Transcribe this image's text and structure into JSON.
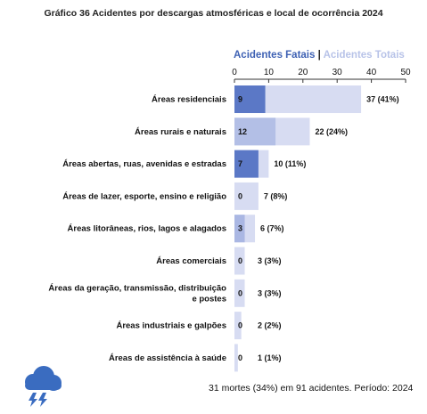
{
  "chart_data": {
    "type": "bar",
    "orientation": "horizontal",
    "title": "Gráfico 36 Acidentes por descargas atmosféricas e local de ocorrência 2024",
    "legend": {
      "fatal_label": "Acidentes Fatais",
      "separator": "|",
      "total_label": "Acidentes Totais",
      "placement": "top"
    },
    "xlim": [
      0,
      50
    ],
    "xticks": [
      0,
      10,
      20,
      30,
      40,
      50
    ],
    "xtick_labels": [
      "0",
      "10",
      "20",
      "30",
      "40",
      "50"
    ],
    "categories": [
      [
        "Áreas residenciais"
      ],
      [
        "Áreas rurais e naturais"
      ],
      [
        "Áreas abertas, ruas, avenidas e estradas"
      ],
      [
        "Áreas de lazer, esporte, ensino e religião"
      ],
      [
        "Áreas litorâneas, rios, lagos e alagados"
      ],
      [
        "Áreas comerciais"
      ],
      [
        "Áreas da geração, transmissão, distribuição",
        "e postes"
      ],
      [
        "Áreas industriais e galpões"
      ],
      [
        "Áreas de assistência à saúde"
      ]
    ],
    "series": [
      {
        "name": "Acidentes Fatais",
        "values": [
          9,
          12,
          7,
          0,
          3,
          0,
          0,
          0,
          0
        ],
        "labels": [
          "9",
          "12",
          "7",
          "0",
          "3",
          "0",
          "0",
          "0",
          "0"
        ]
      },
      {
        "name": "Acidentes Totais",
        "values": [
          37,
          22,
          10,
          7,
          6,
          3,
          3,
          2,
          1
        ],
        "labels": [
          "37 (41%)",
          "22 (24%)",
          "10 (11%)",
          "7 (8%)",
          "6 (7%)",
          "3 (3%)",
          "3 (3%)",
          "2 (2%)",
          "1 (1%)"
        ]
      }
    ],
    "fatal_colors": [
      "#5b78c6",
      "#b3bfe6",
      "#5b78c6",
      "#5b78c6",
      "#aab7e3",
      "#5b78c6",
      "#5b78c6",
      "#5b78c6",
      "#5b78c6"
    ],
    "total_color": "#d7dcf2"
  },
  "footer": {
    "text": "31 mortes (34%) em 91 acidentes. Período: 2024"
  },
  "icon": "storm-cloud-lightning-icon",
  "icon_color": "#3a6cc0"
}
